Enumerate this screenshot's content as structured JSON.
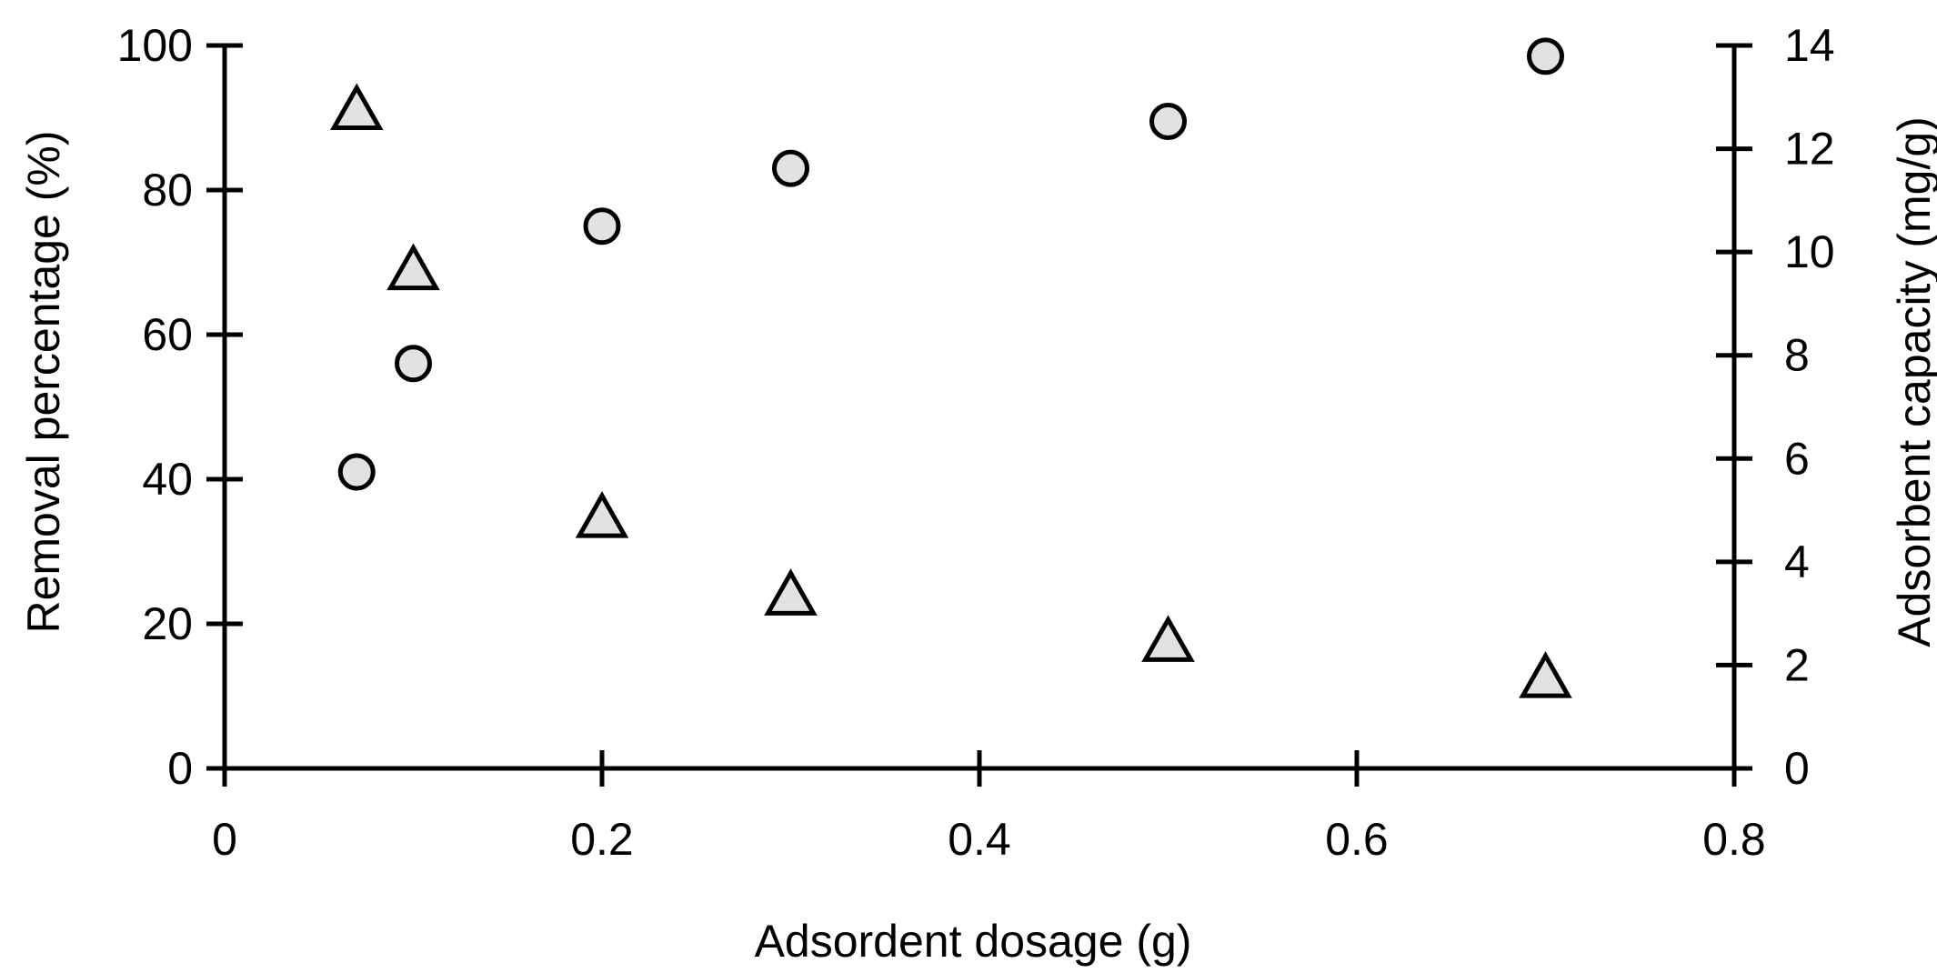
{
  "chart_data": {
    "type": "scatter",
    "title": "",
    "xlabel": "Adsordent dosage (g)",
    "ylabel": "Removal percentage (%)",
    "y2label": "Adsorbent capacity (mg/g)",
    "xlim": [
      0,
      0.8
    ],
    "ylim": [
      0,
      100
    ],
    "y2lim": [
      0,
      14
    ],
    "xticks": [
      "0",
      "0.2",
      "0.4",
      "0.6",
      "0.8"
    ],
    "yticks": [
      "0",
      "20",
      "40",
      "60",
      "80",
      "100"
    ],
    "y2ticks": [
      "0",
      "2",
      "4",
      "6",
      "8",
      "10",
      "12",
      "14"
    ],
    "grid": false,
    "series": [
      {
        "axis": "left",
        "marker": "circle",
        "color": "#e2e2e2",
        "x": [
          0.07,
          0.1,
          0.2,
          0.3,
          0.5,
          0.7
        ],
        "y": [
          41,
          56,
          75,
          83,
          89.5,
          98.5
        ]
      },
      {
        "axis": "right",
        "marker": "triangle",
        "color": "#e2e2e2",
        "x": [
          0.07,
          0.1,
          0.2,
          0.3,
          0.5,
          0.7
        ],
        "y": [
          12.7,
          9.6,
          4.8,
          3.3,
          2.4,
          1.7
        ]
      }
    ]
  }
}
